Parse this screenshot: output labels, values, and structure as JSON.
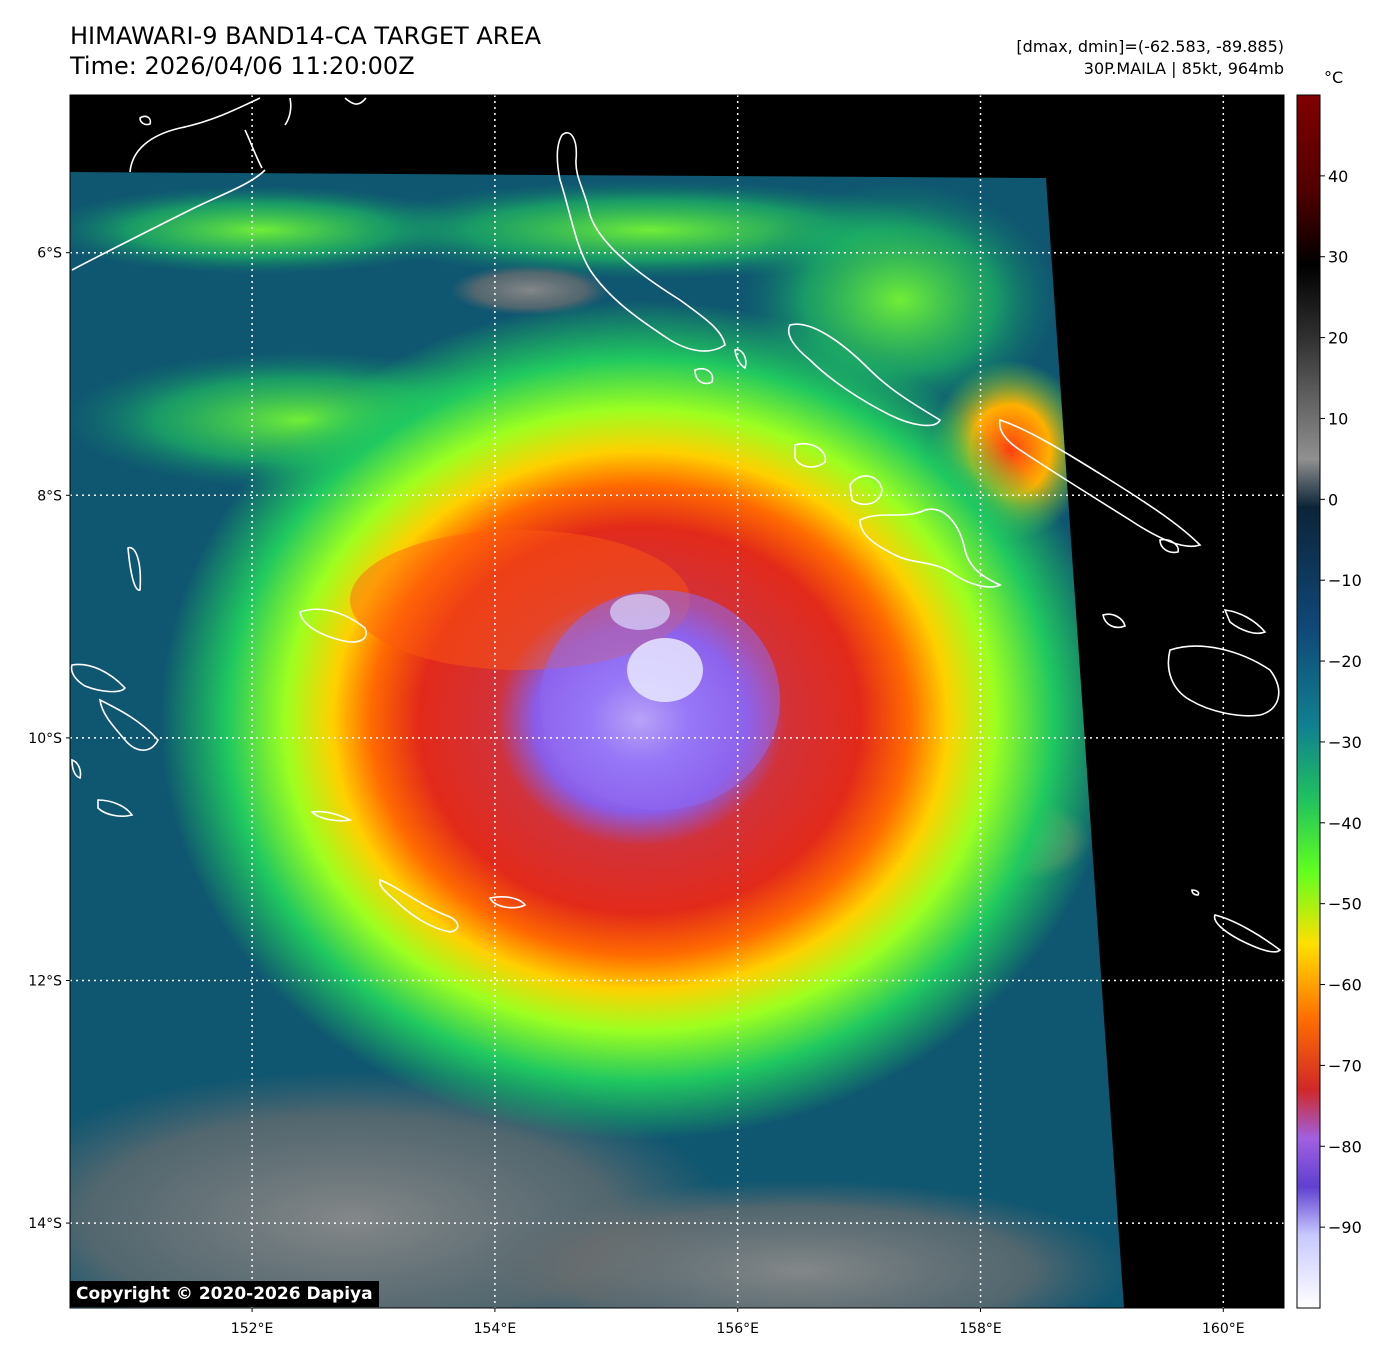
{
  "header": {
    "title_line1": "HIMAWARI-9 BAND14-CA TARGET AREA",
    "title_line2": "Time: 2026/04/06 11:20:00Z",
    "stats_line": "[dmax, dmin]=(-62.583, -89.885)",
    "storm_line": "30P.MAILA | 85kt, 964mb"
  },
  "colorbar": {
    "unit": "°C",
    "tick_labels": [
      "40",
      "30",
      "20",
      "10",
      "0",
      "−10",
      "−20",
      "−30",
      "−40",
      "−50",
      "−60",
      "−70",
      "−80",
      "−90"
    ],
    "tick_values": [
      40,
      30,
      20,
      10,
      0,
      -10,
      -20,
      -30,
      -40,
      -50,
      -60,
      -70,
      -80,
      -90
    ],
    "range": [
      -100,
      50
    ]
  },
  "map": {
    "lon_range": [
      150.5,
      160.5
    ],
    "lat_range": [
      -14.7,
      -4.7
    ],
    "lat_labels": [
      "6°S",
      "8°S",
      "10°S",
      "12°S",
      "14°S"
    ],
    "lat_values": [
      -6,
      -8,
      -10,
      -12,
      -14
    ],
    "lon_labels": [
      "152°E",
      "154°E",
      "156°E",
      "158°E",
      "160°E"
    ],
    "lon_values": [
      152,
      154,
      156,
      158,
      160
    ],
    "storm_center": {
      "lon": 155.6,
      "lat": -9.8
    },
    "colors": {
      "no_data": "#000000",
      "coast": "#ffffff",
      "grid": "#ffffff"
    }
  },
  "footer": {
    "copyright": "Copyright © 2020-2026 Dapiya"
  }
}
